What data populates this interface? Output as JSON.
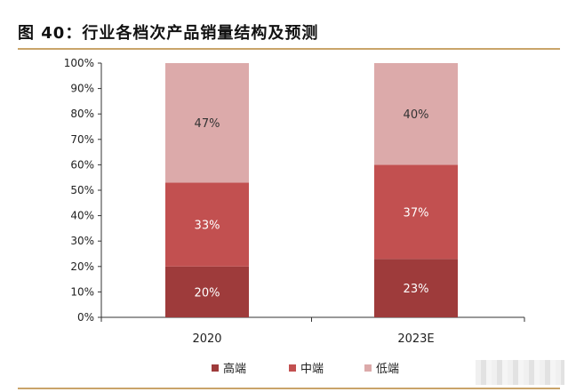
{
  "title": "图 40：行业各档次产品销量结构及预测",
  "chart_data": {
    "type": "bar",
    "stacked": true,
    "categories": [
      "2020",
      "2023E"
    ],
    "series": [
      {
        "name": "高端",
        "values": [
          20,
          23
        ],
        "labels": [
          "20%",
          "23%"
        ],
        "color": "#9e3b3b"
      },
      {
        "name": "中端",
        "values": [
          33,
          37
        ],
        "labels": [
          "33%",
          "37%"
        ],
        "color": "#c25050"
      },
      {
        "name": "低端",
        "values": [
          47,
          40
        ],
        "labels": [
          "47%",
          "40%"
        ],
        "color": "#dcaaaa"
      }
    ],
    "yticks": [
      "0%",
      "10%",
      "20%",
      "30%",
      "40%",
      "50%",
      "60%",
      "70%",
      "80%",
      "90%",
      "100%"
    ],
    "ylim": [
      0,
      100
    ],
    "legend_position": "bottom",
    "grid": false
  }
}
